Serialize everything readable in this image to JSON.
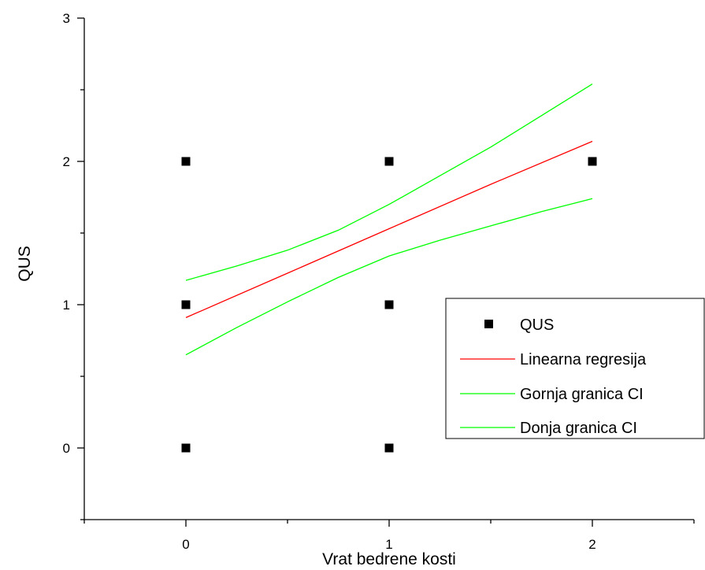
{
  "chart_data": {
    "type": "scatter",
    "xlabel": "Vrat bedrene kosti",
    "ylabel": "QUS",
    "xlim": [
      -0.5,
      2.5
    ],
    "ylim": [
      -0.5,
      3
    ],
    "x_ticks": [
      0,
      1,
      2
    ],
    "y_ticks": [
      0,
      1,
      2,
      3
    ],
    "grid": false,
    "legend_position": "right",
    "series": [
      {
        "name": "QUS",
        "kind": "points",
        "color": "#000000",
        "marker": "square",
        "x": [
          0,
          0,
          0,
          1,
          1,
          1,
          2
        ],
        "y": [
          2,
          1,
          0,
          2,
          1,
          0,
          2
        ]
      },
      {
        "name": "Linearna regresija",
        "kind": "line",
        "color": "#ff0000",
        "x": [
          0,
          0.5,
          1,
          1.5,
          2
        ],
        "y": [
          0.91,
          1.22,
          1.53,
          1.84,
          2.14
        ]
      },
      {
        "name": "Gornja granica CI",
        "kind": "line",
        "color": "#00ff00",
        "x": [
          0,
          0.25,
          0.5,
          0.75,
          1,
          1.25,
          1.5,
          1.75,
          2
        ],
        "y": [
          1.17,
          1.27,
          1.38,
          1.52,
          1.7,
          1.9,
          2.1,
          2.32,
          2.54
        ]
      },
      {
        "name": "Donja granica CI",
        "kind": "line",
        "color": "#00ff00",
        "x": [
          0,
          0.25,
          0.5,
          0.75,
          1,
          1.25,
          1.5,
          1.75,
          2
        ],
        "y": [
          0.65,
          0.84,
          1.02,
          1.19,
          1.34,
          1.45,
          1.55,
          1.65,
          1.74
        ]
      }
    ]
  }
}
